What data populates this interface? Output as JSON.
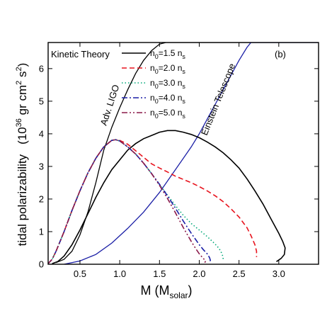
{
  "chart_data": {
    "type": "line",
    "panel_label": "(b)",
    "xlabel_main": "M (M",
    "xlabel_sub": "solar",
    "xlabel_end": ")",
    "ylabel_text": "tidal polarizability",
    "ylabel_unit_prefix": "(10",
    "ylabel_unit_exp1": "36",
    "ylabel_unit_mid": " gr cm",
    "ylabel_unit_exp2": "2",
    "ylabel_unit_s": " s",
    "ylabel_unit_exp3": "2",
    "ylabel_unit_end": ")",
    "xlim": [
      0.1,
      3.5
    ],
    "ylim": [
      0,
      6.8
    ],
    "xticks": [
      "0.5",
      "1.0",
      "1.5",
      "2.0",
      "2.5",
      "3.0"
    ],
    "xtick_values": [
      0.5,
      1.0,
      1.5,
      2.0,
      2.5,
      3.0
    ],
    "yticks": [
      "0",
      "1",
      "2",
      "3",
      "4",
      "5",
      "6"
    ],
    "ytick_values": [
      0,
      1,
      2,
      3,
      4,
      5,
      6
    ],
    "annotations": {
      "kinetic_theory": "Kinetic Theory",
      "adv_ligo": "Adv. LIGO",
      "einstein_telescope": "Einstein Telescope"
    },
    "legend_position": "top-right",
    "series": [
      {
        "name_pre": "n",
        "name_sub1": "0",
        "name_mid": "=1.5 n",
        "name_sub2": "s",
        "color": "#000000",
        "dash": "",
        "x": [
          0.15,
          0.22,
          0.3,
          0.4,
          0.5,
          0.6,
          0.7,
          0.8,
          0.9,
          1.0,
          1.1,
          1.2,
          1.3,
          1.4,
          1.5,
          1.6,
          1.7,
          1.8,
          1.9,
          2.0,
          2.1,
          2.2,
          2.3,
          2.4,
          2.5,
          2.6,
          2.7,
          2.8,
          2.9,
          3.0,
          3.05,
          3.08,
          3.07,
          3.03,
          2.97
        ],
        "y": [
          0.02,
          0.08,
          0.25,
          0.6,
          1.05,
          1.55,
          2.05,
          2.5,
          2.9,
          3.2,
          3.5,
          3.7,
          3.85,
          3.95,
          4.05,
          4.1,
          4.1,
          4.05,
          3.98,
          3.88,
          3.75,
          3.6,
          3.42,
          3.2,
          2.95,
          2.62,
          2.25,
          1.85,
          1.4,
          0.95,
          0.7,
          0.5,
          0.3,
          0.18,
          0.08
        ]
      },
      {
        "name_pre": "n",
        "name_sub1": "0",
        "name_mid": "=2.0 n",
        "name_sub2": "s",
        "color": "#e8141e",
        "dash": "7,4",
        "x": [
          0.1,
          0.15,
          0.2,
          0.3,
          0.4,
          0.5,
          0.6,
          0.7,
          0.8,
          0.9,
          0.95,
          1.0,
          1.1,
          1.2,
          1.3,
          1.4,
          1.5,
          1.6,
          1.7,
          1.8,
          1.9,
          2.0,
          2.1,
          2.2,
          2.3,
          2.4,
          2.5,
          2.6,
          2.65,
          2.7,
          2.72,
          2.72
        ],
        "y": [
          0.02,
          0.15,
          0.4,
          1.0,
          1.65,
          2.25,
          2.8,
          3.25,
          3.6,
          3.8,
          3.82,
          3.8,
          3.68,
          3.48,
          3.28,
          3.08,
          2.95,
          2.83,
          2.7,
          2.6,
          2.5,
          2.38,
          2.25,
          2.1,
          1.92,
          1.7,
          1.45,
          1.12,
          0.88,
          0.6,
          0.4,
          0.22
        ]
      },
      {
        "name_pre": "n",
        "name_sub1": "0",
        "name_mid": "=3.0 n",
        "name_sub2": "s",
        "color": "#00a878",
        "dash": "1.5,3",
        "x": [
          0.1,
          0.15,
          0.2,
          0.3,
          0.4,
          0.5,
          0.6,
          0.7,
          0.8,
          0.9,
          0.95,
          1.0,
          1.1,
          1.2,
          1.3,
          1.4,
          1.5,
          1.6,
          1.7,
          1.8,
          1.9,
          2.0,
          2.1,
          2.2,
          2.25,
          2.28,
          2.3,
          2.3
        ],
        "y": [
          0.02,
          0.15,
          0.4,
          1.0,
          1.65,
          2.25,
          2.8,
          3.25,
          3.6,
          3.8,
          3.82,
          3.78,
          3.6,
          3.38,
          3.1,
          2.78,
          2.45,
          2.12,
          1.8,
          1.5,
          1.25,
          1.05,
          0.85,
          0.62,
          0.48,
          0.35,
          0.22,
          0.12
        ]
      },
      {
        "name_pre": "n",
        "name_sub1": "0",
        "name_mid": "=4.0 n",
        "name_sub2": "s",
        "color": "#1b1fa6",
        "dash": "8,3,2,3",
        "x": [
          0.1,
          0.15,
          0.2,
          0.3,
          0.4,
          0.5,
          0.6,
          0.7,
          0.8,
          0.9,
          0.95,
          1.0,
          1.1,
          1.2,
          1.3,
          1.4,
          1.5,
          1.6,
          1.7,
          1.8,
          1.9,
          2.0,
          2.05,
          2.1,
          2.13,
          2.14,
          2.12
        ],
        "y": [
          0.02,
          0.15,
          0.4,
          1.0,
          1.65,
          2.25,
          2.8,
          3.25,
          3.6,
          3.8,
          3.82,
          3.78,
          3.6,
          3.38,
          3.1,
          2.78,
          2.45,
          2.1,
          1.72,
          1.32,
          0.95,
          0.6,
          0.45,
          0.32,
          0.2,
          0.12,
          0.05
        ]
      },
      {
        "name_pre": "n",
        "name_sub1": "0",
        "name_mid": "=5.0 n",
        "name_sub2": "s",
        "color": "#8b1a4a",
        "dash": "8,3,2,3,2,3",
        "x": [
          0.1,
          0.15,
          0.2,
          0.3,
          0.4,
          0.5,
          0.6,
          0.7,
          0.8,
          0.9,
          0.95,
          1.0,
          1.1,
          1.2,
          1.3,
          1.4,
          1.5,
          1.6,
          1.7,
          1.8,
          1.9,
          1.95,
          2.0,
          2.05,
          2.08,
          2.07
        ],
        "y": [
          0.02,
          0.15,
          0.4,
          1.0,
          1.65,
          2.25,
          2.8,
          3.25,
          3.6,
          3.8,
          3.82,
          3.78,
          3.6,
          3.38,
          3.1,
          2.78,
          2.42,
          2.02,
          1.58,
          1.12,
          0.7,
          0.5,
          0.32,
          0.18,
          0.1,
          0.05
        ]
      }
    ],
    "limit_curves": [
      {
        "label": "Adv. LIGO",
        "color": "#000000",
        "x": [
          0.2,
          0.3,
          0.4,
          0.5,
          0.6,
          0.7,
          0.8,
          0.85,
          0.9,
          1.0,
          1.1,
          1.2,
          1.3,
          1.4,
          1.5,
          1.58,
          3.5
        ],
        "y": [
          0.05,
          0.15,
          0.4,
          0.9,
          1.6,
          2.5,
          3.5,
          3.85,
          4.2,
          4.8,
          5.35,
          5.85,
          6.25,
          6.55,
          6.75,
          6.8,
          6.8
        ]
      },
      {
        "label": "Einstein Telescope",
        "color": "#1b1fa6",
        "x": [
          0.3,
          0.5,
          0.7,
          0.9,
          1.1,
          1.3,
          1.5,
          1.7,
          1.9,
          2.0,
          2.1,
          2.2,
          2.3,
          2.4,
          2.5,
          2.6,
          2.65,
          3.5
        ],
        "y": [
          0.0,
          0.1,
          0.3,
          0.65,
          1.1,
          1.6,
          2.2,
          2.9,
          3.6,
          4.0,
          4.45,
          4.9,
          5.35,
          5.8,
          6.25,
          6.65,
          6.8,
          6.8
        ]
      }
    ]
  }
}
